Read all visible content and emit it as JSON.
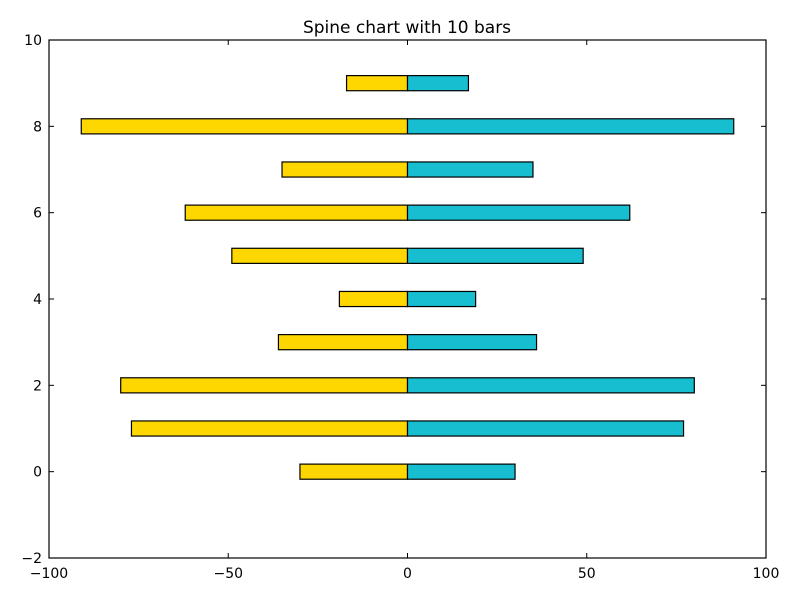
{
  "chart_data": {
    "type": "bar",
    "orientation": "horizontal",
    "title": "Spine chart with 10 bars",
    "xlabel": "",
    "ylabel": "",
    "xlim": [
      -100,
      100
    ],
    "ylim": [
      -2,
      10
    ],
    "xticks": [
      -100,
      -50,
      0,
      50,
      100
    ],
    "xtick_labels": [
      "−100",
      "−50",
      "0",
      "50",
      "100"
    ],
    "yticks": [
      -2,
      0,
      2,
      4,
      6,
      8,
      10
    ],
    "ytick_labels": [
      "−2",
      "0",
      "2",
      "4",
      "6",
      "8",
      "10"
    ],
    "grid": false,
    "legend": "none",
    "categories": [
      0,
      1,
      2,
      3,
      4,
      5,
      6,
      7,
      8,
      9
    ],
    "series": [
      {
        "color": "#ffd700",
        "values": [
          -30,
          -77,
          -80,
          -36,
          -19,
          -49,
          -62,
          -35,
          -91,
          -17
        ]
      },
      {
        "color": "#17becf",
        "values": [
          30,
          77,
          80,
          36,
          19,
          49,
          62,
          35,
          91,
          17
        ]
      }
    ],
    "bar_height": 0.35
  }
}
